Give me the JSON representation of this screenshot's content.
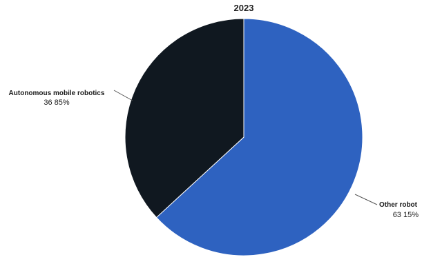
{
  "chart_data": {
    "type": "pie",
    "title": "2023",
    "slices": [
      {
        "label": "Other robots",
        "display_label": "Other robot",
        "value": 63.15,
        "value_text": "63 15%",
        "color": "#2e62c0"
      },
      {
        "label": "Autonomous mobile robotics",
        "display_label": "Autonomous mobile robotics",
        "value": 36.85,
        "value_text": "36 85%",
        "color": "#101820"
      }
    ],
    "start_angle_deg": 0,
    "direction": "clockwise",
    "legend": "none"
  }
}
